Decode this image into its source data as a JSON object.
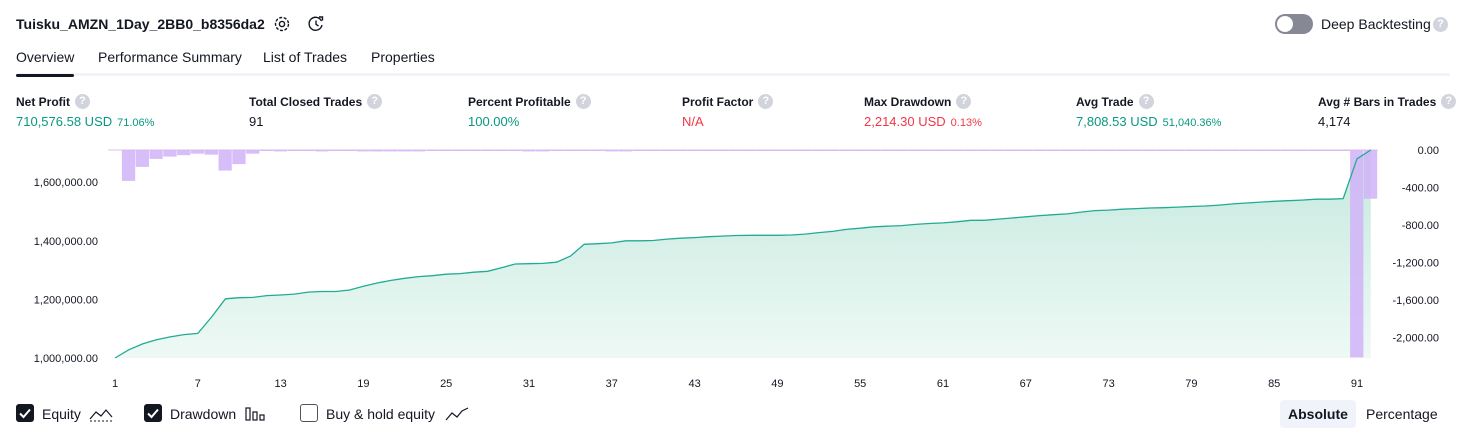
{
  "header": {
    "title": "Tuisku_AMZN_1Day_2BB0_b8356da2",
    "deep_backtesting_label": "Deep Backtesting",
    "deep_backtesting_enabled": false,
    "help_glyph": "?"
  },
  "tabs": [
    {
      "label": "Overview",
      "active": true
    },
    {
      "label": "Performance Summary",
      "active": false
    },
    {
      "label": "List of Trades",
      "active": false
    },
    {
      "label": "Properties",
      "active": false
    }
  ],
  "metrics": [
    {
      "label": "Net Profit",
      "value": "710,576.58 USD",
      "pct": "71.06%",
      "tone": "green"
    },
    {
      "label": "Total Closed Trades",
      "value": "91",
      "pct": "",
      "tone": "dark"
    },
    {
      "label": "Percent Profitable",
      "value": "100.00%",
      "pct": "",
      "tone": "green"
    },
    {
      "label": "Profit Factor",
      "value": "N/A",
      "pct": "",
      "tone": "red"
    },
    {
      "label": "Max Drawdown",
      "value": "2,214.30 USD",
      "pct": "0.13%",
      "tone": "red"
    },
    {
      "label": "Avg Trade",
      "value": "7,808.53 USD",
      "pct": "51,040.36%",
      "tone": "green"
    },
    {
      "label": "Avg # Bars in Trades",
      "value": "4,174",
      "pct": "",
      "tone": "dark"
    }
  ],
  "legend": {
    "equity_label": "Equity",
    "equity_checked": true,
    "drawdown_label": "Drawdown",
    "drawdown_checked": true,
    "buy_hold_label": "Buy & hold equity",
    "buy_hold_checked": false
  },
  "view": {
    "absolute_label": "Absolute",
    "percentage_label": "Percentage",
    "selected": "Absolute"
  },
  "colors": {
    "equity_line": "#22ab94",
    "equity_fill_top": "#c4e9de",
    "equity_fill_bottom": "#eef9f5",
    "drawdown_bar": "#d1b3f8",
    "drawdown_baseline": "#e1bee7",
    "net_profit_green": "#089981",
    "loss_red": "#f23645"
  },
  "chart_data": {
    "type": "area",
    "x_ticks": [
      "1",
      "7",
      "13",
      "19",
      "25",
      "31",
      "37",
      "43",
      "49",
      "55",
      "61",
      "67",
      "73",
      "79",
      "85",
      "91"
    ],
    "xlim": [
      1,
      92
    ],
    "equity": {
      "axis": "left",
      "ylim": [
        1000000,
        1710000
      ],
      "y_ticks": [
        "1,000,000.00",
        "1,200,000.00",
        "1,400,000.00",
        "1,600,000.00"
      ],
      "x": [
        1,
        2,
        3,
        4,
        5,
        6,
        7,
        8,
        9,
        10,
        11,
        12,
        13,
        14,
        15,
        16,
        17,
        18,
        19,
        20,
        21,
        22,
        23,
        24,
        25,
        26,
        27,
        28,
        29,
        30,
        31,
        32,
        33,
        34,
        35,
        36,
        37,
        38,
        39,
        40,
        41,
        42,
        43,
        44,
        45,
        46,
        47,
        48,
        49,
        50,
        51,
        52,
        53,
        54,
        55,
        56,
        57,
        58,
        59,
        60,
        61,
        62,
        63,
        64,
        65,
        66,
        67,
        68,
        69,
        70,
        71,
        72,
        73,
        74,
        75,
        76,
        77,
        78,
        79,
        80,
        81,
        82,
        83,
        84,
        85,
        86,
        87,
        88,
        89,
        90,
        91,
        92
      ],
      "values": [
        1000000,
        1028000,
        1048000,
        1062000,
        1072000,
        1080000,
        1084000,
        1140000,
        1202000,
        1206000,
        1207000,
        1213000,
        1215000,
        1218000,
        1225000,
        1227000,
        1227000,
        1232000,
        1245000,
        1256000,
        1265000,
        1272000,
        1278000,
        1281000,
        1286000,
        1288000,
        1293000,
        1296000,
        1308000,
        1321000,
        1322000,
        1323000,
        1327000,
        1348000,
        1388000,
        1390000,
        1393000,
        1400000,
        1400000,
        1401000,
        1406000,
        1409000,
        1411000,
        1414000,
        1416000,
        1418000,
        1419000,
        1419000,
        1419000,
        1420000,
        1423000,
        1428000,
        1432000,
        1439000,
        1443000,
        1448000,
        1450000,
        1452000,
        1456000,
        1459000,
        1461000,
        1465000,
        1470000,
        1470000,
        1474000,
        1478000,
        1482000,
        1486000,
        1489000,
        1492000,
        1498000,
        1503000,
        1505000,
        1508000,
        1510000,
        1512000,
        1513000,
        1515000,
        1517000,
        1519000,
        1522000,
        1526000,
        1529000,
        1532000,
        1535000,
        1537000,
        1539000,
        1542000,
        1542000,
        1544000,
        1680000,
        1710000
      ]
    },
    "drawdown": {
      "axis": "right",
      "ylim": [
        -2220,
        0
      ],
      "y_ticks": [
        "0.00",
        "-400.00",
        "-800.00",
        "-1,200.00",
        "-1,600.00",
        "-2,000.00"
      ],
      "x": [
        2,
        3,
        4,
        5,
        6,
        7,
        8,
        9,
        10,
        11,
        12,
        13,
        14,
        15,
        16,
        17,
        18,
        19,
        20,
        21,
        22,
        23,
        24,
        25,
        26,
        27,
        28,
        29,
        30,
        31,
        32,
        33,
        34,
        35,
        36,
        37,
        38,
        39,
        40,
        41,
        42,
        43,
        44,
        45,
        46,
        47,
        48,
        49,
        50,
        51,
        52,
        53,
        54,
        55,
        56,
        57,
        58,
        59,
        60,
        61,
        62,
        63,
        64,
        65,
        66,
        67,
        68,
        69,
        70,
        71,
        72,
        73,
        74,
        75,
        76,
        77,
        78,
        79,
        80,
        81,
        82,
        83,
        84,
        85,
        86,
        87,
        88,
        89,
        90,
        91,
        92
      ],
      "values": [
        -330,
        -180,
        -95,
        -70,
        -55,
        -40,
        -50,
        -220,
        -150,
        -40,
        -5,
        -15,
        -5,
        -5,
        -15,
        -5,
        -5,
        -15,
        -15,
        -15,
        -15,
        -15,
        -5,
        -5,
        -5,
        -5,
        -5,
        -5,
        -5,
        -15,
        -15,
        -5,
        -5,
        -5,
        -5,
        -15,
        -15,
        -5,
        -5,
        -5,
        -5,
        -5,
        -5,
        -5,
        -5,
        -5,
        -5,
        -5,
        -5,
        -5,
        -5,
        -5,
        -5,
        -5,
        -5,
        -5,
        -5,
        -5,
        -5,
        -5,
        -5,
        -5,
        -5,
        -5,
        -5,
        -5,
        -5,
        -5,
        -5,
        -5,
        -5,
        -5,
        -5,
        -5,
        -5,
        -5,
        -5,
        -5,
        -5,
        -5,
        -5,
        -5,
        -5,
        -5,
        -5,
        -5,
        -5,
        -5,
        -5,
        -2214,
        -520
      ]
    }
  }
}
